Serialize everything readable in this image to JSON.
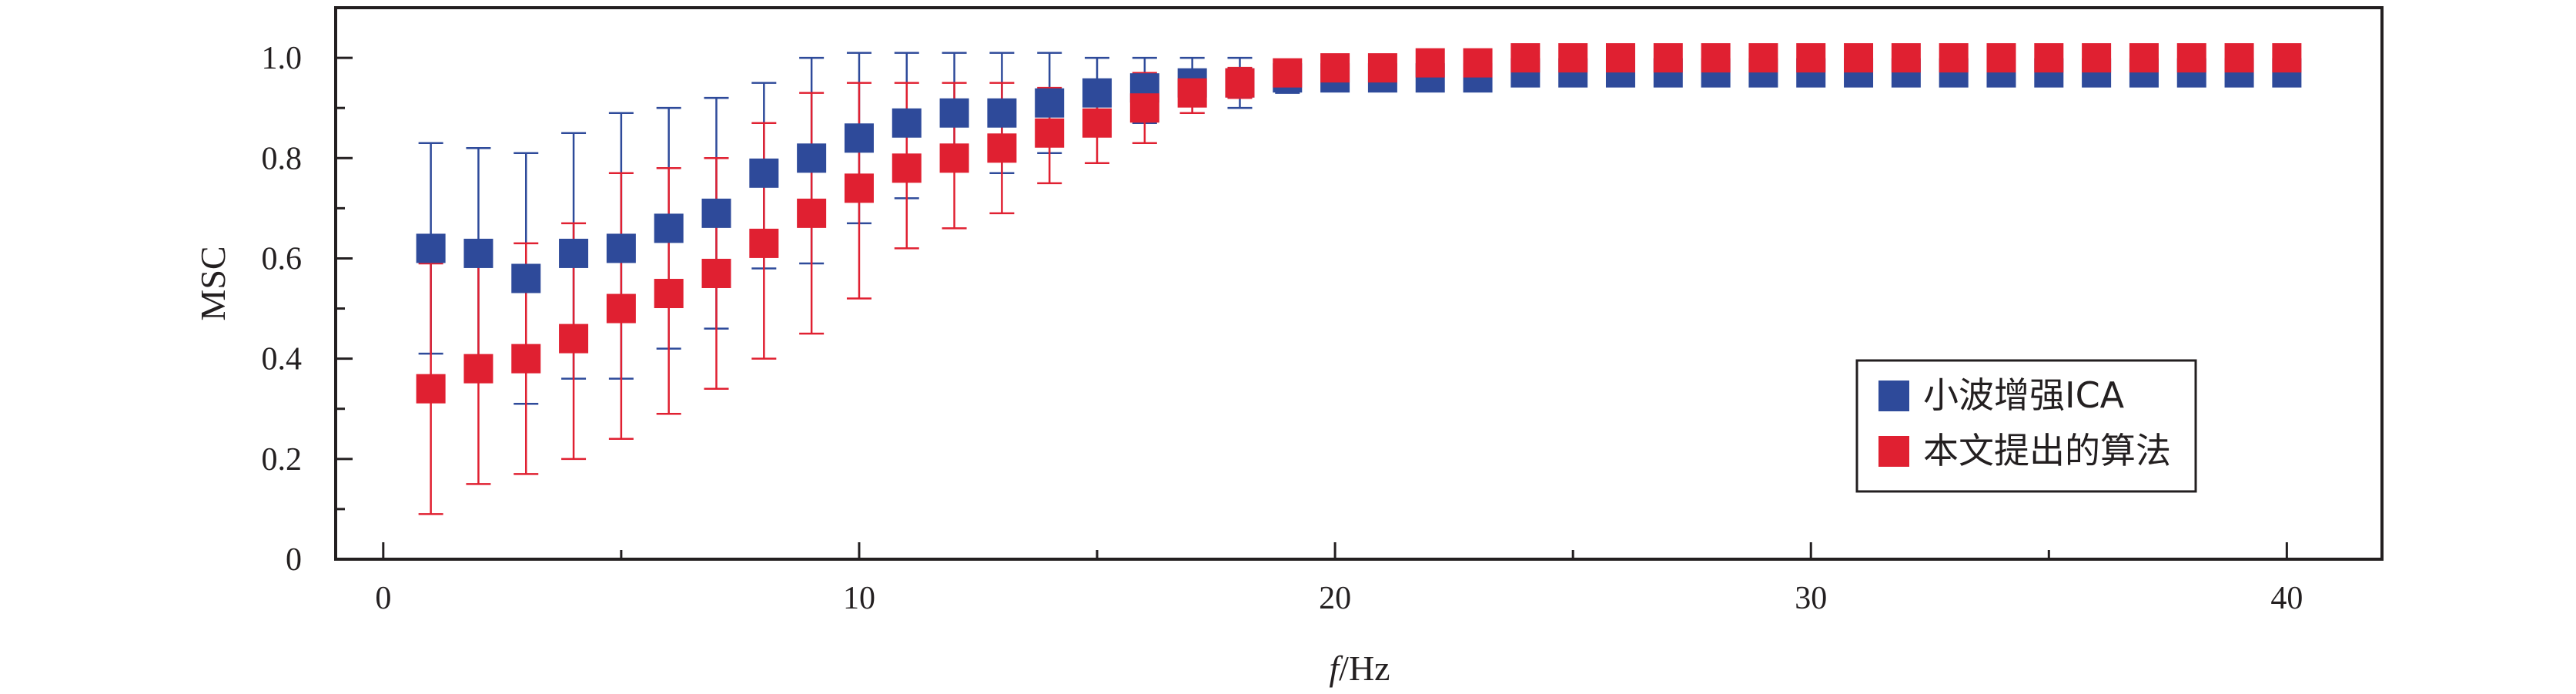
{
  "chart_data": {
    "type": "scatter",
    "title": "",
    "xlabel": {
      "italic": "f",
      "rest": "/Hz"
    },
    "ylabel": "MSC",
    "xlim": [
      -1,
      42
    ],
    "ylim": [
      0,
      1.1
    ],
    "x_ticks": [
      0,
      10,
      20,
      30,
      40
    ],
    "x_tick_labels": [
      "0",
      "10",
      "20",
      "30",
      "40"
    ],
    "y_ticks": [
      0,
      0.2,
      0.4,
      0.6,
      0.8,
      1.0
    ],
    "y_tick_labels": [
      "0",
      "0.2",
      "0.4",
      "0.6",
      "0.8",
      "1.0"
    ],
    "grid": false,
    "legend_position": "bottom-right",
    "x": [
      1,
      2,
      3,
      4,
      5,
      6,
      7,
      8,
      9,
      10,
      11,
      12,
      13,
      14,
      15,
      16,
      17,
      18,
      19,
      20,
      21,
      22,
      23,
      24,
      25,
      26,
      27,
      28,
      29,
      30,
      31,
      32,
      33,
      34,
      35,
      36,
      37,
      38,
      39,
      40
    ],
    "series": [
      {
        "name": "小波增强ICA",
        "color": "#2e4a9a",
        "values": [
          0.62,
          0.61,
          0.56,
          0.61,
          0.62,
          0.66,
          0.69,
          0.77,
          0.8,
          0.84,
          0.87,
          0.89,
          0.89,
          0.91,
          0.93,
          0.94,
          0.95,
          0.95,
          0.96,
          0.96,
          0.96,
          0.96,
          0.96,
          0.97,
          0.97,
          0.97,
          0.97,
          0.97,
          0.97,
          0.97,
          0.97,
          0.97,
          0.97,
          0.97,
          0.97,
          0.97,
          0.97,
          0.97,
          0.97,
          0.97
        ],
        "err_low": [
          0.41,
          0.4,
          0.31,
          0.36,
          0.36,
          0.42,
          0.46,
          0.58,
          0.59,
          0.67,
          0.72,
          0.78,
          0.77,
          0.81,
          0.86,
          0.87,
          0.89,
          0.9,
          0.93,
          0.94,
          0.95,
          0.95,
          0.95,
          0.96,
          0.96,
          0.96,
          0.96,
          0.96,
          0.96,
          0.96,
          0.96,
          0.96,
          0.96,
          0.96,
          0.96,
          0.96,
          0.96,
          0.96,
          0.96,
          0.96
        ],
        "err_high": [
          0.83,
          0.82,
          0.81,
          0.85,
          0.89,
          0.9,
          0.92,
          0.95,
          1.0,
          1.01,
          1.01,
          1.01,
          1.01,
          1.01,
          1.0,
          1.0,
          1.0,
          1.0,
          0.99,
          0.98,
          0.98,
          0.98,
          0.98,
          0.98,
          0.98,
          0.98,
          0.98,
          0.98,
          0.98,
          0.98,
          0.98,
          0.98,
          0.98,
          0.98,
          0.98,
          0.98,
          0.98,
          0.98,
          0.98,
          0.98
        ]
      },
      {
        "name": "本文提出的算法",
        "color": "#e02031",
        "values": [
          0.34,
          0.38,
          0.4,
          0.44,
          0.5,
          0.53,
          0.57,
          0.63,
          0.69,
          0.74,
          0.78,
          0.8,
          0.82,
          0.85,
          0.87,
          0.9,
          0.93,
          0.95,
          0.97,
          0.98,
          0.98,
          0.99,
          0.99,
          1.0,
          1.0,
          1.0,
          1.0,
          1.0,
          1.0,
          1.0,
          1.0,
          1.0,
          1.0,
          1.0,
          1.0,
          1.0,
          1.0,
          1.0,
          1.0,
          1.0
        ],
        "err_low": [
          0.09,
          0.15,
          0.17,
          0.2,
          0.24,
          0.29,
          0.34,
          0.4,
          0.45,
          0.52,
          0.62,
          0.66,
          0.69,
          0.75,
          0.79,
          0.83,
          0.89,
          0.92,
          0.95,
          0.96,
          0.97,
          0.98,
          0.98,
          0.99,
          0.99,
          0.99,
          0.99,
          0.99,
          0.99,
          0.99,
          0.99,
          0.99,
          0.99,
          0.99,
          0.99,
          0.99,
          0.99,
          0.99,
          0.99,
          0.99
        ],
        "err_high": [
          0.59,
          0.62,
          0.63,
          0.67,
          0.77,
          0.78,
          0.8,
          0.87,
          0.93,
          0.95,
          0.95,
          0.95,
          0.95,
          0.94,
          0.95,
          0.97,
          0.97,
          0.98,
          0.99,
          0.99,
          1.0,
          1.0,
          1.0,
          1.0,
          1.0,
          1.0,
          1.0,
          1.0,
          1.0,
          1.0,
          1.0,
          1.0,
          1.0,
          1.0,
          1.0,
          1.0,
          1.0,
          1.0,
          1.0,
          1.0
        ]
      }
    ]
  }
}
